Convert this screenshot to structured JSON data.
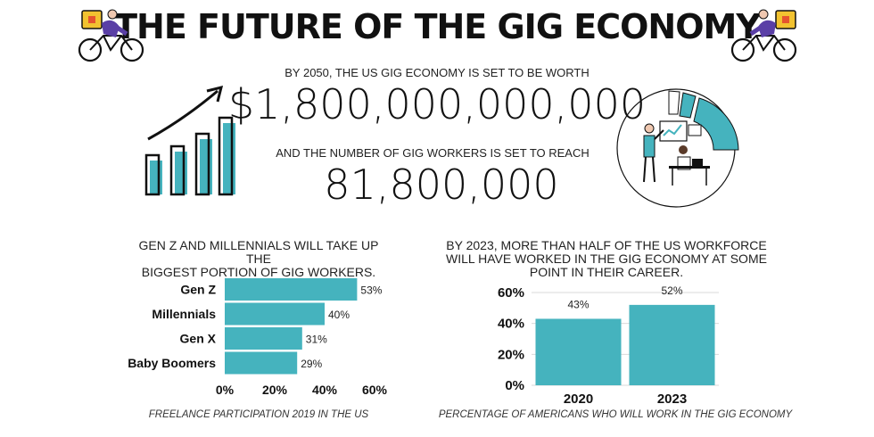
{
  "header": {
    "title": "THE FUTURE OF THE GIG ECONOMY",
    "stat1_prefix": "BY 2050, THE US GIG ECONOMY IS SET TO BE WORTH",
    "stat1_value": "$1,800,000,000,000",
    "stat2_prefix": "AND THE NUMBER OF GIG WORKERS IS SET TO REACH",
    "stat2_value": "81,800,000"
  },
  "colors": {
    "accent": "#45b3be",
    "dark": "#111111"
  },
  "icons": [
    "delivery-cyclist-icon",
    "growth-bar-chart-icon",
    "office-workers-illustration"
  ],
  "left_panel": {
    "caption_line1": "GEN Z AND MILLENNIALS WILL TAKE UP THE",
    "caption_line2": "BIGGEST PORTION OF GIG WORKERS.",
    "footnote": "FREELANCE PARTICIPATION 2019 IN THE US"
  },
  "right_panel": {
    "caption_line1": "BY 2023, MORE THAN HALF OF THE US WORKFORCE",
    "caption_line2": "WILL HAVE WORKED IN THE GIG ECONOMY AT SOME",
    "caption_line3": "POINT IN THEIR CAREER.",
    "footnote": "PERCENTAGE OF AMERICANS WHO WILL WORK IN THE GIG ECONOMY"
  },
  "chart_data": [
    {
      "type": "bar",
      "orientation": "horizontal",
      "categories": [
        "Gen Z",
        "Millennials",
        "Gen X",
        "Baby Boomers"
      ],
      "values": [
        53,
        40,
        31,
        29
      ],
      "value_labels": [
        "53%",
        "40%",
        "31%",
        "29%"
      ],
      "xlim": [
        0,
        60
      ],
      "xticks": [
        "0%",
        "20%",
        "40%",
        "60%"
      ],
      "grid": false
    },
    {
      "type": "bar",
      "orientation": "vertical",
      "categories": [
        "2020",
        "2023"
      ],
      "values": [
        43,
        52
      ],
      "value_labels": [
        "43%",
        "52%"
      ],
      "ylim": [
        0,
        60
      ],
      "yticks": [
        "0%",
        "20%",
        "40%",
        "60%"
      ],
      "grid": true
    }
  ]
}
